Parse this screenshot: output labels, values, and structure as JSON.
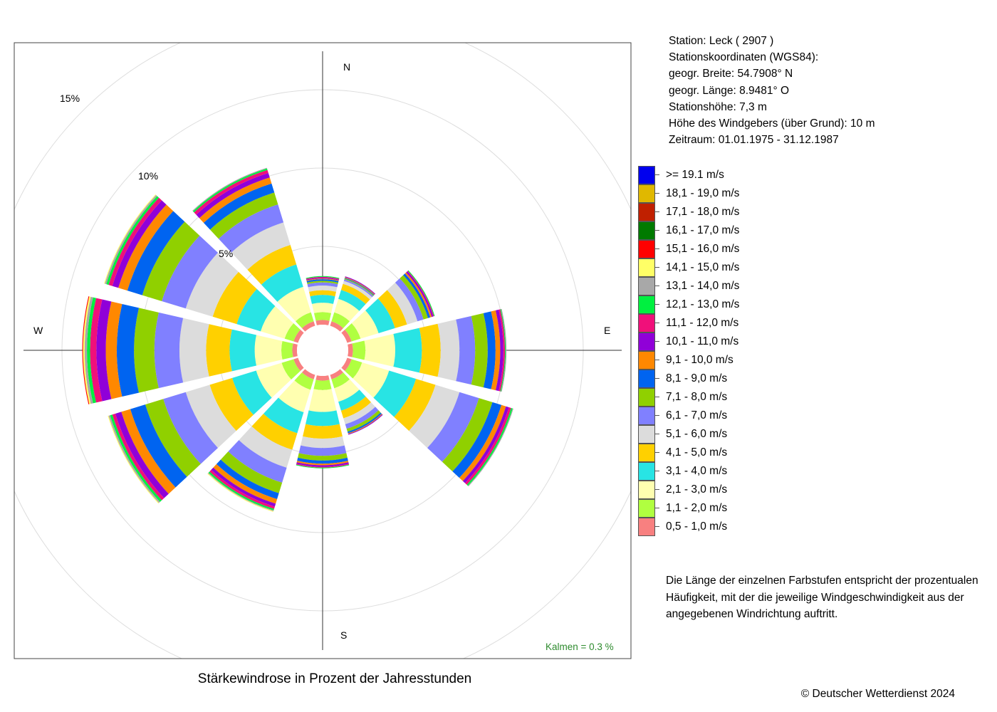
{
  "station": {
    "line1": "Station:  Leck  ( 2907 )",
    "line2": "Stationskoordinaten (WGS84):",
    "line3": "geogr. Breite: 54.7908° N",
    "line4": "geogr. Länge:   8.9481° O",
    "line5": "Stationshöhe: 7,3 m",
    "line6": "Höhe des Windgebers (über Grund): 10 m",
    "line7": "Zeitraum: 01.01.1975 - 31.12.1987"
  },
  "legend": [
    {
      "label": ">= 19.1 m/s",
      "color": "#0000EE"
    },
    {
      "label": "18,1 - 19,0 m/s",
      "color": "#E0B800"
    },
    {
      "label": "17,1 - 18,0 m/s",
      "color": "#C02000"
    },
    {
      "label": "16,1 - 17,0 m/s",
      "color": "#007A00"
    },
    {
      "label": "15,1 - 16,0 m/s",
      "color": "#FF0000"
    },
    {
      "label": "14,1 - 15,0 m/s",
      "color": "#FFFF66"
    },
    {
      "label": "13,1 - 14,0 m/s",
      "color": "#A8A8A8"
    },
    {
      "label": "12,1 - 13,0 m/s",
      "color": "#00F040"
    },
    {
      "label": "11,1 - 12,0 m/s",
      "color": "#F0107A"
    },
    {
      "label": "10,1 - 11,0 m/s",
      "color": "#9000D8"
    },
    {
      "label": "9,1 - 10,0 m/s",
      "color": "#FF8800"
    },
    {
      "label": "8,1 - 9,0 m/s",
      "color": "#0064F0"
    },
    {
      "label": "7,1 - 8,0 m/s",
      "color": "#90D000"
    },
    {
      "label": "6,1 - 7,0 m/s",
      "color": "#8080FF"
    },
    {
      "label": "5,1 - 6,0 m/s",
      "color": "#DCDCDC"
    },
    {
      "label": "4,1 - 5,0 m/s",
      "color": "#FFD000"
    },
    {
      "label": "3,1 - 4,0 m/s",
      "color": "#28E4E4"
    },
    {
      "label": "2,1 - 3,0 m/s",
      "color": "#FFFFB0"
    },
    {
      "label": "1,1 - 2,0 m/s",
      "color": "#B0FF40"
    },
    {
      "label": "0,5 - 1,0 m/s",
      "color": "#F88080"
    }
  ],
  "note": "Die Länge der einzelnen Farbstufen entspricht der prozentualen Häufigkeit, mit der die jeweilige Windgeschwindigkeit aus der angegebenen Windrichtung auftritt.",
  "chart_title": "Stärkewindrose in Prozent der Jahresstunden",
  "copyright": "© Deutscher Wetterdienst  2024",
  "calm": "Kalmen  =  0.3 %",
  "chart_data": {
    "type": "wind-rose",
    "title": "Stärkewindrose in Prozent der Jahresstunden",
    "directions": [
      "N",
      "E",
      "S",
      "W"
    ],
    "radial_labels": [
      "5%",
      "10%",
      "15%"
    ],
    "radial_unit": "%",
    "calm_percent": 0.3,
    "sectors": [
      {
        "direction_deg": 0,
        "values": [
          0.3,
          0.5,
          0.6,
          0.5,
          0.3,
          0.3,
          0.2,
          0.1,
          0.1,
          0.05,
          0.05,
          0.05,
          0.05,
          0.0,
          0.0,
          0.0,
          0.0,
          0.0,
          0.0,
          0.0
        ]
      },
      {
        "direction_deg": 30,
        "values": [
          0.3,
          0.6,
          0.9,
          0.6,
          0.4,
          0.2,
          0.1,
          0.05,
          0.05,
          0.05,
          0.05,
          0.0,
          0.0,
          0.0,
          0.0,
          0.0,
          0.0,
          0.0,
          0.0,
          0.0
        ]
      },
      {
        "direction_deg": 60,
        "values": [
          0.3,
          0.6,
          1.2,
          1.1,
          0.8,
          0.7,
          0.4,
          0.3,
          0.15,
          0.1,
          0.1,
          0.05,
          0.05,
          0.0,
          0.0,
          0.0,
          0.0,
          0.0,
          0.0,
          0.0
        ]
      },
      {
        "direction_deg": 90,
        "values": [
          0.3,
          0.8,
          1.9,
          1.7,
          1.2,
          1.2,
          1.0,
          0.8,
          0.5,
          0.3,
          0.2,
          0.1,
          0.05,
          0.05,
          0.0,
          0.0,
          0.0,
          0.0,
          0.0,
          0.0
        ]
      },
      {
        "direction_deg": 120,
        "values": [
          0.3,
          0.7,
          1.8,
          1.8,
          1.3,
          1.6,
          1.3,
          0.9,
          0.6,
          0.3,
          0.2,
          0.15,
          0.1,
          0.05,
          0.0,
          0.0,
          0.0,
          0.0,
          0.0,
          0.0
        ]
      },
      {
        "direction_deg": 150,
        "values": [
          0.3,
          0.6,
          0.9,
          0.6,
          0.5,
          0.4,
          0.3,
          0.2,
          0.1,
          0.05,
          0.05,
          0.0,
          0.0,
          0.0,
          0.0,
          0.0,
          0.0,
          0.0,
          0.0,
          0.0
        ]
      },
      {
        "direction_deg": 180,
        "values": [
          0.3,
          0.6,
          1.4,
          0.9,
          0.8,
          0.6,
          0.5,
          0.3,
          0.2,
          0.1,
          0.1,
          0.05,
          0.05,
          0.0,
          0.0,
          0.0,
          0.0,
          0.0,
          0.0,
          0.0
        ]
      },
      {
        "direction_deg": 210,
        "values": [
          0.3,
          0.7,
          1.5,
          1.4,
          1.1,
          1.2,
          1.0,
          0.7,
          0.4,
          0.3,
          0.2,
          0.15,
          0.1,
          0.05,
          0.05,
          0.0,
          0.0,
          0.0,
          0.0,
          0.0
        ]
      },
      {
        "direction_deg": 240,
        "values": [
          0.3,
          0.8,
          1.7,
          1.6,
          1.5,
          1.6,
          1.5,
          1.2,
          1.0,
          0.6,
          0.4,
          0.2,
          0.15,
          0.1,
          0.05,
          0.0,
          0.0,
          0.0,
          0.0,
          0.0
        ]
      },
      {
        "direction_deg": 270,
        "values": [
          0.3,
          0.7,
          1.7,
          1.6,
          1.5,
          1.7,
          1.6,
          1.3,
          1.1,
          0.7,
          0.6,
          0.4,
          0.2,
          0.15,
          0.1,
          0.05,
          0.0,
          0.0,
          0.0,
          0.0
        ]
      },
      {
        "direction_deg": 300,
        "values": [
          0.3,
          0.6,
          1.6,
          1.6,
          1.6,
          1.8,
          1.6,
          1.3,
          1.0,
          0.6,
          0.4,
          0.25,
          0.15,
          0.1,
          0.05,
          0.0,
          0.0,
          0.0,
          0.0,
          0.0
        ]
      },
      {
        "direction_deg": 330,
        "values": [
          0.3,
          0.6,
          1.7,
          1.5,
          1.3,
          1.5,
          1.2,
          0.8,
          0.6,
          0.4,
          0.3,
          0.2,
          0.1,
          0.05,
          0.0,
          0.0,
          0.0,
          0.0,
          0.0,
          0.0
        ]
      }
    ],
    "speed_classes": [
      "0,5 - 1,0 m/s",
      "1,1 - 2,0 m/s",
      "2,1 - 3,0 m/s",
      "3,1 - 4,0 m/s",
      "4,1 - 5,0 m/s",
      "5,1 - 6,0 m/s",
      "6,1 - 7,0 m/s",
      "7,1 - 8,0 m/s",
      "8,1 - 9,0 m/s",
      "9,1 - 10,0 m/s",
      "10,1 - 11,0 m/s",
      "11,1 - 12,0 m/s",
      "12,1 - 13,0 m/s",
      "13,1 - 14,0 m/s",
      "14,1 - 15,0 m/s",
      "15,1 - 16,0 m/s",
      "16,1 - 17,0 m/s",
      "17,1 - 18,0 m/s",
      "18,1 - 19,0 m/s",
      ">= 19.1 m/s"
    ]
  }
}
